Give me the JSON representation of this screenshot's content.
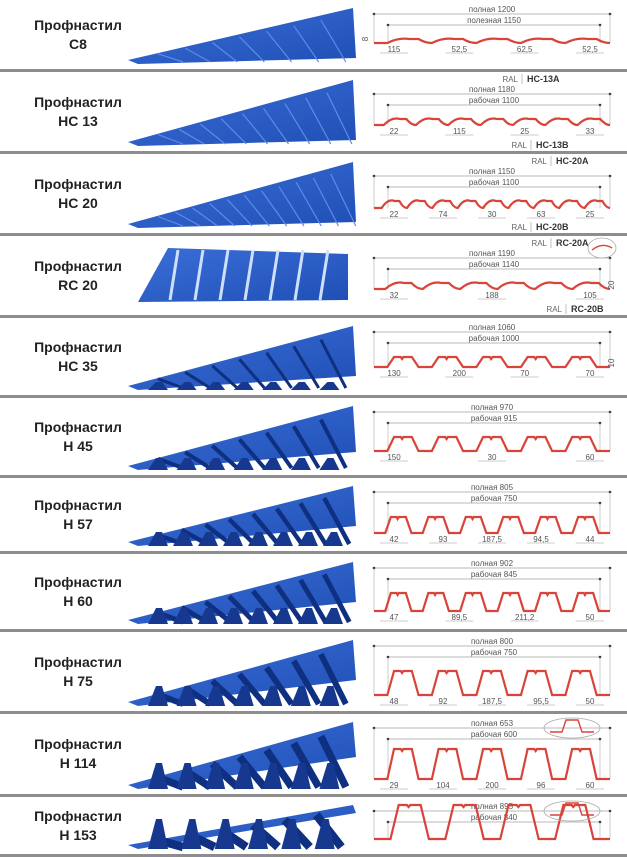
{
  "colors": {
    "sheet": "#1f4fb5",
    "profile": "#d9443a",
    "divider": "#8d8d8d"
  },
  "profiles": [
    {
      "line1": "Профнастил",
      "line2": "С8",
      "full": "полная 1200",
      "working": "полезная 1150",
      "dims": [
        "115",
        "52,5",
        "62,5",
        "52,5"
      ],
      "height": "8",
      "height_side": "left"
    },
    {
      "line1": "Профнастил",
      "line2": "НС 13",
      "full": "полная 1180",
      "working": "рабочая 1100",
      "dims": [
        "22",
        "115",
        "25",
        "33"
      ],
      "ral_top": {
        "ral": "RAL",
        "code": "HC-13A"
      },
      "ral_bottom": {
        "ral": "RAL",
        "code": "HC-13B"
      }
    },
    {
      "line1": "Профнастил",
      "line2": "НС 20",
      "full": "полная 1150",
      "working": "рабочая 1100",
      "dims": [
        "22",
        "74",
        "30",
        "63",
        "25"
      ],
      "ral_top": {
        "ral": "RAL",
        "code": "HC-20A"
      },
      "ral_bottom": {
        "ral": "RAL",
        "code": "HC-20B"
      }
    },
    {
      "line1": "Профнастил",
      "line2": "RC 20",
      "full": "полная 1190",
      "working": "рабочая 1140",
      "dims": [
        "32",
        "188",
        "105"
      ],
      "ral_top": {
        "ral": "RAL",
        "code": "RC-20A"
      },
      "ral_bottom": {
        "ral": "RAL",
        "code": "RC-20B"
      },
      "height": "20",
      "height_side": "right"
    },
    {
      "line1": "Профнастил",
      "line2": "НС 35",
      "full": "полная 1060",
      "working": "рабочая 1000",
      "dims": [
        "130",
        "200",
        "70",
        "70"
      ],
      "height": "10",
      "height_side": "right"
    },
    {
      "line1": "Профнастил",
      "line2": "Н 45",
      "full": "полная 970",
      "working": "рабочая 915",
      "dims": [
        "150",
        "30",
        "60"
      ]
    },
    {
      "line1": "Профнастил",
      "line2": "Н 57",
      "full": "полная 805",
      "working": "рабочая 750",
      "dims": [
        "42",
        "93",
        "187,5",
        "94,5",
        "44"
      ]
    },
    {
      "line1": "Профнастил",
      "line2": "Н 60",
      "full": "полная 902",
      "working": "рабочая 845",
      "dims": [
        "47",
        "89,5",
        "211,2",
        "50"
      ]
    },
    {
      "line1": "Профнастил",
      "line2": "Н 75",
      "full": "полная 800",
      "working": "рабочая 750",
      "dims": [
        "48",
        "92",
        "187,5",
        "95,5",
        "50"
      ]
    },
    {
      "line1": "Профнастил",
      "line2": "Н 114",
      "full": "полная 653",
      "working": "рабочая 600",
      "dims": [
        "29",
        "104",
        "200",
        "96",
        "60"
      ]
    },
    {
      "line1": "Профнастил",
      "line2": "Н 153",
      "full": "полная 895",
      "working": "рабочая 840",
      "dims": []
    }
  ]
}
